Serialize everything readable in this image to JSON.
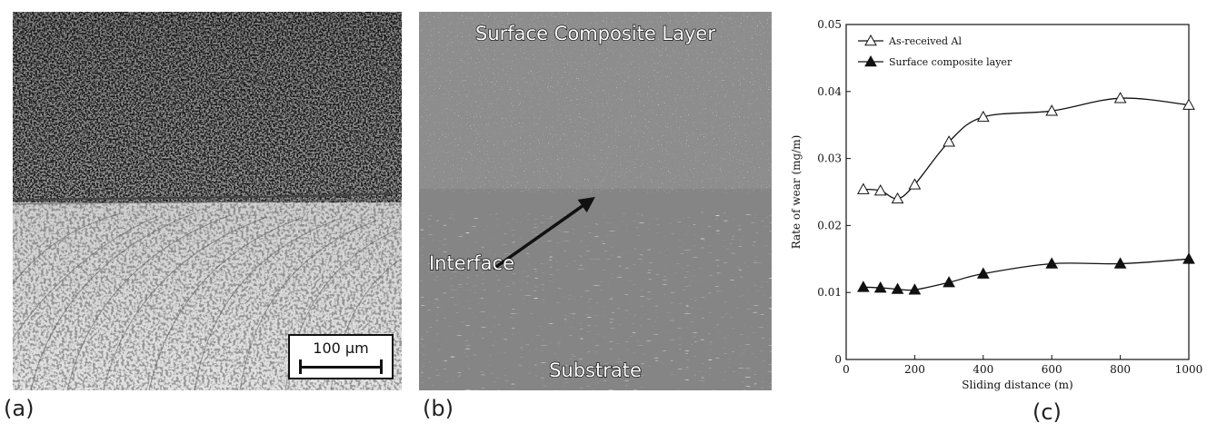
{
  "panels": {
    "a": {
      "label": "(a)",
      "scale_bar": "100 µm"
    },
    "b": {
      "label": "(b)",
      "top_text": "Surface Composite Layer",
      "interface_text": "Interface",
      "bottom_text": "Substrate"
    },
    "c": {
      "label": "(c)"
    }
  },
  "chart_data": {
    "type": "line",
    "xlabel": "Sliding distance (m)",
    "ylabel": "Rate of wear (mg/m)",
    "xlim": [
      0,
      1000
    ],
    "ylim": [
      0,
      0.05
    ],
    "xticks": [
      0,
      200,
      400,
      600,
      800,
      1000
    ],
    "xtick_labels": [
      "0",
      "200",
      "400",
      "600",
      "800",
      "1000"
    ],
    "yticks": [
      0,
      0.01,
      0.02,
      0.03,
      0.04,
      0.05
    ],
    "ytick_labels": [
      "0",
      "0.01",
      "0.02",
      "0.03",
      "0.04",
      "0.05"
    ],
    "grid": false,
    "legend_position": "top-left",
    "series": [
      {
        "name": "As-received Al",
        "marker": "open-triangle",
        "x": [
          50,
          100,
          150,
          200,
          300,
          400,
          600,
          800,
          1000
        ],
        "y": [
          0.0254,
          0.0252,
          0.024,
          0.0261,
          0.0325,
          0.0362,
          0.0371,
          0.039,
          0.038
        ]
      },
      {
        "name": "Surface composite layer",
        "marker": "filled-triangle",
        "x": [
          50,
          100,
          150,
          200,
          300,
          400,
          600,
          800,
          1000
        ],
        "y": [
          0.0108,
          0.0107,
          0.0105,
          0.0104,
          0.0115,
          0.0128,
          0.0143,
          0.0143,
          0.015
        ]
      }
    ]
  }
}
